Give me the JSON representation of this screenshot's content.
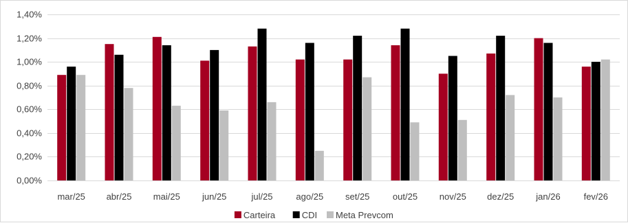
{
  "chart_data": {
    "type": "bar",
    "categories": [
      "mar/25",
      "abr/25",
      "mai/25",
      "jun/25",
      "jul/25",
      "ago/25",
      "set/25",
      "out/25",
      "nov/25",
      "dez/25",
      "jan/26",
      "fev/26"
    ],
    "series": [
      {
        "name": "Carteira",
        "color": "#a50021",
        "values": [
          0.89,
          1.15,
          1.21,
          1.01,
          1.13,
          1.02,
          1.02,
          1.14,
          0.9,
          1.07,
          1.2,
          0.96
        ]
      },
      {
        "name": "CDI",
        "color": "#000000",
        "values": [
          0.96,
          1.06,
          1.14,
          1.1,
          1.28,
          1.16,
          1.22,
          1.28,
          1.05,
          1.22,
          1.16,
          1.0
        ]
      },
      {
        "name": "Meta Prevcom",
        "color": "#bfbfbf",
        "values": [
          0.89,
          0.78,
          0.63,
          0.59,
          0.66,
          0.25,
          0.87,
          0.49,
          0.51,
          0.72,
          0.7,
          1.02
        ]
      }
    ],
    "ylim": [
      0,
      1.4
    ],
    "yticks": [
      0,
      0.2,
      0.4,
      0.6,
      0.8,
      1.0,
      1.2,
      1.4
    ],
    "ytick_labels": [
      "0,00%",
      "0,20%",
      "0,40%",
      "0,60%",
      "0,80%",
      "1,00%",
      "1,20%",
      "1,40%"
    ],
    "grid": true,
    "legend_position": "bottom",
    "title": "",
    "xlabel": "",
    "ylabel": ""
  }
}
